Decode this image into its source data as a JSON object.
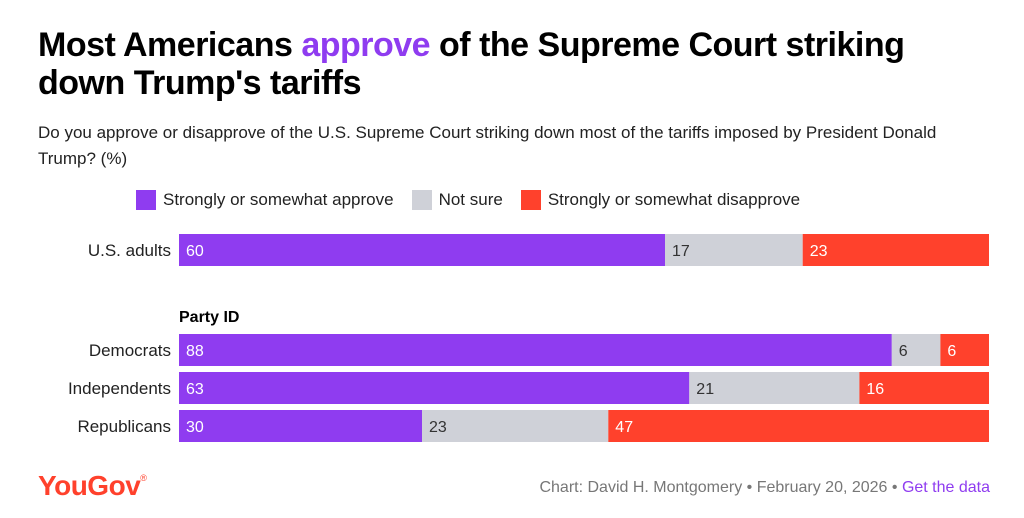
{
  "title": {
    "before": "Most Americans ",
    "highlight": "approve",
    "after": " of the Supreme Court striking down Trump's tariffs"
  },
  "subtitle": "Do you approve or disapprove of the U.S. Supreme Court striking down most of the tariffs imposed by President Donald Trump? (%)",
  "colors": {
    "approve": "#8f3cf0",
    "not_sure": "#cfd1d8",
    "disapprove": "#ff412c",
    "brand": "#ff412c"
  },
  "chart_data": {
    "type": "bar",
    "orientation": "horizontal",
    "stacked": true,
    "title": "Most Americans approve of the Supreme Court striking down Trump's tariffs",
    "xlabel": "",
    "ylabel": "",
    "xlim": [
      0,
      100
    ],
    "grid": false,
    "legend_position": "top",
    "categories": [
      "U.S. adults",
      "Democrats",
      "Independents",
      "Republicans"
    ],
    "group_label": "Party ID",
    "series": [
      {
        "name": "Strongly or somewhat approve",
        "key": "approve",
        "values": [
          60,
          88,
          63,
          30
        ]
      },
      {
        "name": "Not sure",
        "key": "not_sure",
        "values": [
          17,
          6,
          21,
          23
        ]
      },
      {
        "name": "Strongly or somewhat disapprove",
        "key": "disapprove",
        "values": [
          23,
          6,
          16,
          47
        ]
      }
    ]
  },
  "footer": {
    "logo": "YouGov",
    "logo_mark": "®",
    "credit": "Chart: David H. Montgomery • February 20, 2026 • ",
    "link": "Get the data"
  }
}
